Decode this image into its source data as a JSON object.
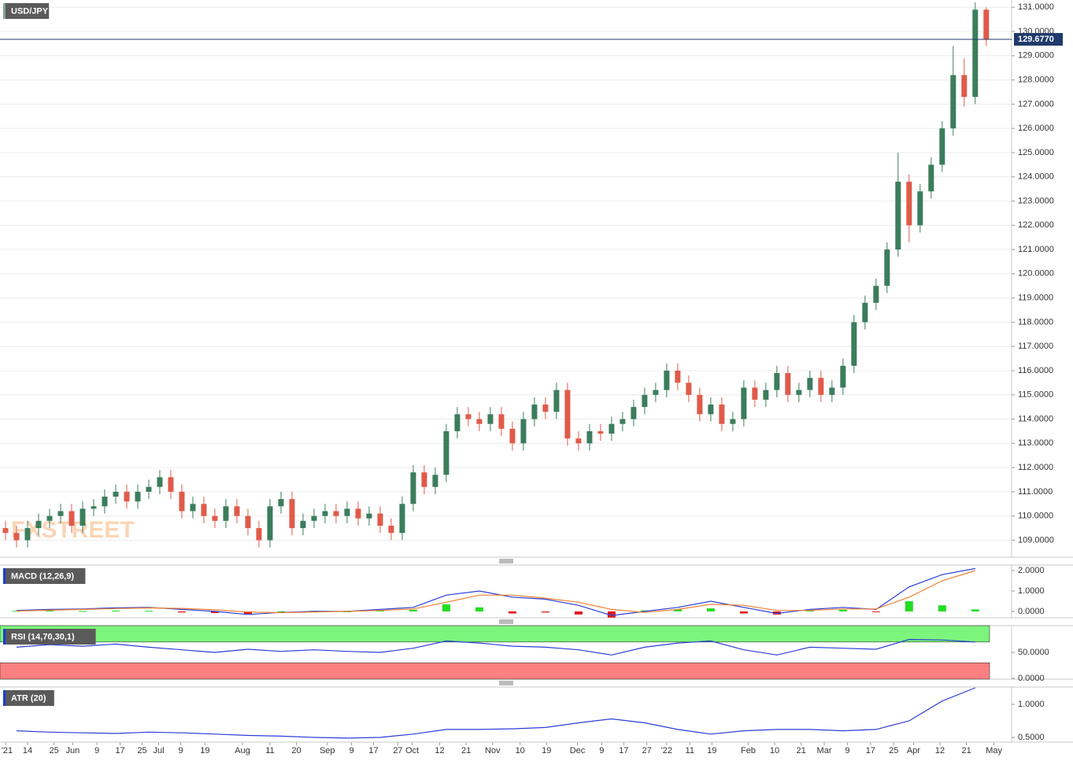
{
  "chart_data": [
    {
      "type": "candlestick",
      "title": "USD/JPY",
      "watermark": "FXSTREET",
      "up_color": "#3b7d5c",
      "down_color": "#e05a4a",
      "open": [
        109.5,
        109.3,
        109.0,
        109.5,
        109.8,
        110.0,
        110.2,
        109.6,
        110.3,
        110.4,
        110.8,
        111.0,
        110.6,
        111.0,
        111.2,
        111.6,
        111.0,
        110.2,
        110.5,
        110.0,
        109.8,
        110.4,
        110.0,
        109.5,
        109.0,
        110.4,
        110.7,
        109.5,
        109.8,
        110.0,
        110.2,
        110.0,
        110.3,
        109.9,
        110.1,
        109.6,
        109.3,
        110.5,
        111.8,
        111.2,
        111.7,
        113.5,
        114.2,
        114.0,
        113.8,
        114.2,
        113.6,
        113.0,
        114.0,
        114.6,
        114.3,
        115.2,
        113.2,
        113.0,
        113.5,
        113.4,
        113.8,
        114.0,
        114.5,
        115.0,
        115.2,
        116.0,
        115.5,
        115.0,
        114.2,
        114.6,
        113.8,
        114.0,
        115.3,
        114.8,
        115.2,
        115.9,
        115.0,
        115.2,
        115.7,
        115.0,
        115.3,
        116.2,
        118.0,
        118.8,
        119.5,
        121.0,
        123.8,
        122.0,
        123.4,
        124.5,
        126.0,
        128.2,
        127.3,
        130.9
      ],
      "high": [
        109.8,
        109.6,
        109.8,
        110.1,
        110.3,
        110.5,
        110.5,
        110.6,
        110.7,
        111.1,
        111.3,
        111.3,
        111.3,
        111.5,
        111.9,
        111.9,
        111.3,
        110.8,
        110.8,
        110.3,
        110.7,
        110.7,
        110.3,
        109.8,
        110.7,
        111.0,
        111.0,
        110.1,
        110.3,
        110.5,
        110.5,
        110.6,
        110.6,
        110.4,
        110.4,
        109.9,
        110.8,
        112.1,
        112.1,
        112.0,
        113.8,
        114.5,
        114.5,
        114.3,
        114.5,
        114.5,
        113.9,
        114.3,
        114.9,
        114.9,
        115.5,
        115.5,
        113.5,
        113.8,
        113.8,
        114.1,
        114.3,
        114.8,
        115.3,
        115.5,
        116.3,
        116.3,
        115.8,
        115.3,
        114.9,
        114.9,
        114.3,
        115.6,
        115.6,
        115.5,
        116.2,
        116.2,
        115.5,
        116.0,
        116.0,
        115.6,
        116.5,
        118.3,
        119.1,
        119.8,
        121.3,
        125.0,
        124.1,
        123.7,
        124.8,
        126.3,
        129.4,
        128.9,
        131.2,
        131.0
      ],
      "low": [
        109.0,
        108.7,
        108.7,
        109.2,
        109.5,
        109.7,
        109.3,
        109.3,
        110.0,
        110.1,
        110.5,
        110.3,
        110.3,
        110.7,
        110.9,
        110.7,
        109.9,
        109.9,
        109.7,
        109.5,
        109.5,
        109.7,
        109.2,
        108.7,
        108.7,
        110.1,
        109.2,
        109.2,
        109.5,
        109.7,
        109.7,
        109.7,
        109.6,
        109.6,
        109.3,
        109.0,
        109.0,
        110.2,
        110.9,
        110.9,
        111.4,
        113.2,
        113.7,
        113.5,
        113.5,
        113.3,
        112.7,
        112.7,
        113.7,
        114.0,
        114.0,
        112.9,
        112.7,
        112.7,
        113.1,
        113.1,
        113.5,
        113.7,
        114.2,
        114.7,
        114.9,
        115.2,
        114.7,
        113.9,
        113.9,
        113.5,
        113.5,
        113.7,
        114.5,
        114.5,
        114.9,
        114.7,
        114.7,
        114.9,
        114.7,
        114.7,
        115.0,
        115.9,
        117.7,
        118.5,
        119.2,
        120.7,
        121.3,
        121.7,
        123.1,
        124.2,
        125.7,
        126.9,
        127.0,
        129.4
      ],
      "close": [
        109.3,
        109.0,
        109.5,
        109.8,
        110.0,
        110.2,
        109.6,
        110.3,
        110.4,
        110.8,
        111.0,
        110.6,
        111.0,
        111.2,
        111.6,
        111.0,
        110.2,
        110.5,
        110.0,
        109.8,
        110.4,
        110.0,
        109.5,
        109.0,
        110.4,
        110.7,
        109.5,
        109.8,
        110.0,
        110.2,
        110.0,
        110.3,
        109.9,
        110.1,
        109.6,
        109.3,
        110.5,
        111.8,
        111.2,
        111.7,
        113.5,
        114.2,
        114.0,
        113.8,
        114.2,
        113.6,
        113.0,
        114.0,
        114.6,
        114.3,
        115.2,
        113.2,
        113.0,
        113.5,
        113.4,
        113.8,
        114.0,
        114.5,
        115.0,
        115.2,
        116.0,
        115.5,
        115.0,
        114.2,
        114.6,
        113.8,
        114.0,
        115.3,
        114.8,
        115.2,
        115.9,
        115.0,
        115.2,
        115.7,
        115.0,
        115.3,
        116.2,
        118.0,
        118.8,
        119.5,
        121.0,
        123.8,
        122.0,
        123.4,
        124.5,
        126.0,
        128.2,
        127.3,
        130.9,
        129.677
      ],
      "last_price": 129.677,
      "last_price_label": "129.6770",
      "last_price_color": "#1f3a6b",
      "xlim": [
        -0.5,
        91.3
      ],
      "ylim": [
        108.3,
        131.3
      ],
      "grid": true,
      "xticks": [
        {
          "value": 0,
          "label": "'21"
        },
        {
          "value": 2,
          "label": "14"
        },
        {
          "value": 4.4,
          "label": "25"
        },
        {
          "value": 6.1,
          "label": "Jun"
        },
        {
          "value": 8.3,
          "label": "9"
        },
        {
          "value": 10.4,
          "label": "17"
        },
        {
          "value": 12.4,
          "label": "25"
        },
        {
          "value": 13.9,
          "label": "Jul"
        },
        {
          "value": 15.9,
          "label": "9"
        },
        {
          "value": 18.1,
          "label": "19"
        },
        {
          "value": 21.5,
          "label": "Aug"
        },
        {
          "value": 24,
          "label": "11"
        },
        {
          "value": 26.4,
          "label": "20"
        },
        {
          "value": 29.2,
          "label": "Sep"
        },
        {
          "value": 31.4,
          "label": "9"
        },
        {
          "value": 33.4,
          "label": "17"
        },
        {
          "value": 35.6,
          "label": "27"
        },
        {
          "value": 36.9,
          "label": "Oct"
        },
        {
          "value": 39.4,
          "label": "12"
        },
        {
          "value": 41.8,
          "label": "21"
        },
        {
          "value": 44.2,
          "label": "Nov"
        },
        {
          "value": 46.7,
          "label": "10"
        },
        {
          "value": 49.1,
          "label": "19"
        },
        {
          "value": 51.9,
          "label": "Dec"
        },
        {
          "value": 54.1,
          "label": "9"
        },
        {
          "value": 56.1,
          "label": "17"
        },
        {
          "value": 58.2,
          "label": "27"
        },
        {
          "value": 60,
          "label": "'22"
        },
        {
          "value": 62.1,
          "label": "11"
        },
        {
          "value": 64.1,
          "label": "19"
        },
        {
          "value": 67.4,
          "label": "Feb"
        },
        {
          "value": 69.8,
          "label": "10"
        },
        {
          "value": 72.2,
          "label": "21"
        },
        {
          "value": 74.3,
          "label": "Mar"
        },
        {
          "value": 76.4,
          "label": "9"
        },
        {
          "value": 78.5,
          "label": "17"
        },
        {
          "value": 80.6,
          "label": "25"
        },
        {
          "value": 82.4,
          "label": "Apr"
        },
        {
          "value": 84.8,
          "label": "12"
        },
        {
          "value": 87.2,
          "label": "21"
        },
        {
          "value": 89.7,
          "label": "May"
        }
      ],
      "yticks": [
        {
          "value": 109,
          "label": "109.0000"
        },
        {
          "value": 110,
          "label": "110.0000"
        },
        {
          "value": 111,
          "label": "111.0000"
        },
        {
          "value": 112,
          "label": "112.0000"
        },
        {
          "value": 113,
          "label": "113.0000"
        },
        {
          "value": 114,
          "label": "114.0000"
        },
        {
          "value": 115,
          "label": "115.0000"
        },
        {
          "value": 116,
          "label": "116.0000"
        },
        {
          "value": 117,
          "label": "117.0000"
        },
        {
          "value": 118,
          "label": "118.0000"
        },
        {
          "value": 119,
          "label": "119.0000"
        },
        {
          "value": 120,
          "label": "120.0000"
        },
        {
          "value": 121,
          "label": "121.0000"
        },
        {
          "value": 122,
          "label": "122.0000"
        },
        {
          "value": 123,
          "label": "123.0000"
        },
        {
          "value": 124,
          "label": "124.0000"
        },
        {
          "value": 125,
          "label": "125.0000"
        },
        {
          "value": 126,
          "label": "126.0000"
        },
        {
          "value": 127,
          "label": "127.0000"
        },
        {
          "value": 128,
          "label": "128.0000"
        },
        {
          "value": 129,
          "label": "129.0000"
        },
        {
          "value": 130,
          "label": "130.0000"
        },
        {
          "value": 131,
          "label": "131.0000"
        }
      ]
    },
    {
      "type": "macd",
      "title": "MACD (12,26,9)",
      "x": [
        1,
        4,
        7,
        10,
        13,
        16,
        19,
        22,
        25,
        28,
        31,
        34,
        37,
        40,
        43,
        46,
        49,
        52,
        55,
        58,
        61,
        64,
        67,
        70,
        73,
        76,
        79,
        82,
        85,
        88
      ],
      "series": [
        {
          "color": "#2b3fd6",
          "values": [
            0.05,
            0.1,
            0.12,
            0.18,
            0.2,
            0.1,
            0.0,
            -0.15,
            -0.05,
            0.0,
            0.0,
            0.1,
            0.2,
            0.8,
            1.0,
            0.7,
            0.6,
            0.3,
            -0.2,
            0.0,
            0.2,
            0.5,
            0.2,
            -0.1,
            0.1,
            0.2,
            0.1,
            1.2,
            1.8,
            2.1
          ]
        },
        {
          "color": "#f08030",
          "values": [
            0.02,
            0.06,
            0.1,
            0.14,
            0.17,
            0.15,
            0.08,
            -0.03,
            -0.06,
            -0.03,
            0.0,
            0.05,
            0.12,
            0.45,
            0.8,
            0.8,
            0.65,
            0.45,
            0.1,
            -0.05,
            0.1,
            0.35,
            0.3,
            0.05,
            0.05,
            0.12,
            0.12,
            0.7,
            1.5,
            2.0
          ]
        }
      ],
      "histogram": {
        "up_color": "#22dd22",
        "down_color": "#e01818",
        "values": [
          0.03,
          0.04,
          0.02,
          0.04,
          0.03,
          -0.05,
          -0.08,
          -0.12,
          0.01,
          0.03,
          0.0,
          0.05,
          0.08,
          0.35,
          0.2,
          -0.1,
          -0.05,
          -0.15,
          -0.3,
          0.05,
          0.1,
          0.15,
          -0.1,
          -0.15,
          0.05,
          0.08,
          -0.02,
          0.5,
          0.3,
          0.1
        ]
      },
      "xlim": [
        -0.5,
        91.3
      ],
      "ylim": [
        -0.31,
        2.27
      ],
      "yticks": [
        {
          "value": 0,
          "label": "0.0000"
        },
        {
          "value": 1,
          "label": "1.0000"
        },
        {
          "value": 2,
          "label": "2.0000"
        }
      ]
    },
    {
      "type": "rsi",
      "title": "RSI (14,70,30,1)",
      "x": [
        1,
        4,
        7,
        10,
        13,
        16,
        19,
        22,
        25,
        28,
        31,
        34,
        37,
        40,
        43,
        46,
        49,
        52,
        55,
        58,
        61,
        64,
        67,
        70,
        73,
        76,
        79,
        82,
        85,
        88
      ],
      "color": "#2b3fd6",
      "values": [
        60,
        65,
        62,
        66,
        60,
        55,
        50,
        56,
        52,
        55,
        52,
        50,
        58,
        72,
        68,
        62,
        60,
        55,
        45,
        60,
        68,
        72,
        55,
        45,
        60,
        58,
        56,
        75,
        74,
        70
      ],
      "upper": 70,
      "lower": 30,
      "upper_color": "#7cf57c",
      "lower_color": "#fb8080",
      "xlim": [
        -0.5,
        91.3
      ],
      "ylim": [
        -1.5,
        101.5
      ],
      "yticks": [
        {
          "value": 0,
          "label": "0.0000"
        },
        {
          "value": 50,
          "label": "50.0000"
        }
      ]
    },
    {
      "type": "line",
      "title": "ATR (20)",
      "x": [
        1,
        4,
        7,
        10,
        13,
        16,
        19,
        22,
        25,
        28,
        31,
        34,
        37,
        40,
        43,
        46,
        49,
        52,
        55,
        58,
        61,
        64,
        67,
        70,
        73,
        76,
        79,
        82,
        85,
        88
      ],
      "color": "#2b3fd6",
      "values": [
        0.6,
        0.58,
        0.57,
        0.56,
        0.58,
        0.57,
        0.55,
        0.53,
        0.52,
        0.5,
        0.49,
        0.5,
        0.55,
        0.62,
        0.62,
        0.63,
        0.65,
        0.72,
        0.78,
        0.72,
        0.62,
        0.55,
        0.6,
        0.62,
        0.62,
        0.6,
        0.62,
        0.75,
        1.05,
        1.25
      ],
      "xlim": [
        -0.5,
        91.3
      ],
      "ylim": [
        0.429,
        1.262
      ],
      "yticks": [
        {
          "value": 0.5,
          "label": "0.5000"
        },
        {
          "value": 1,
          "label": "1.0000"
        }
      ]
    }
  ]
}
